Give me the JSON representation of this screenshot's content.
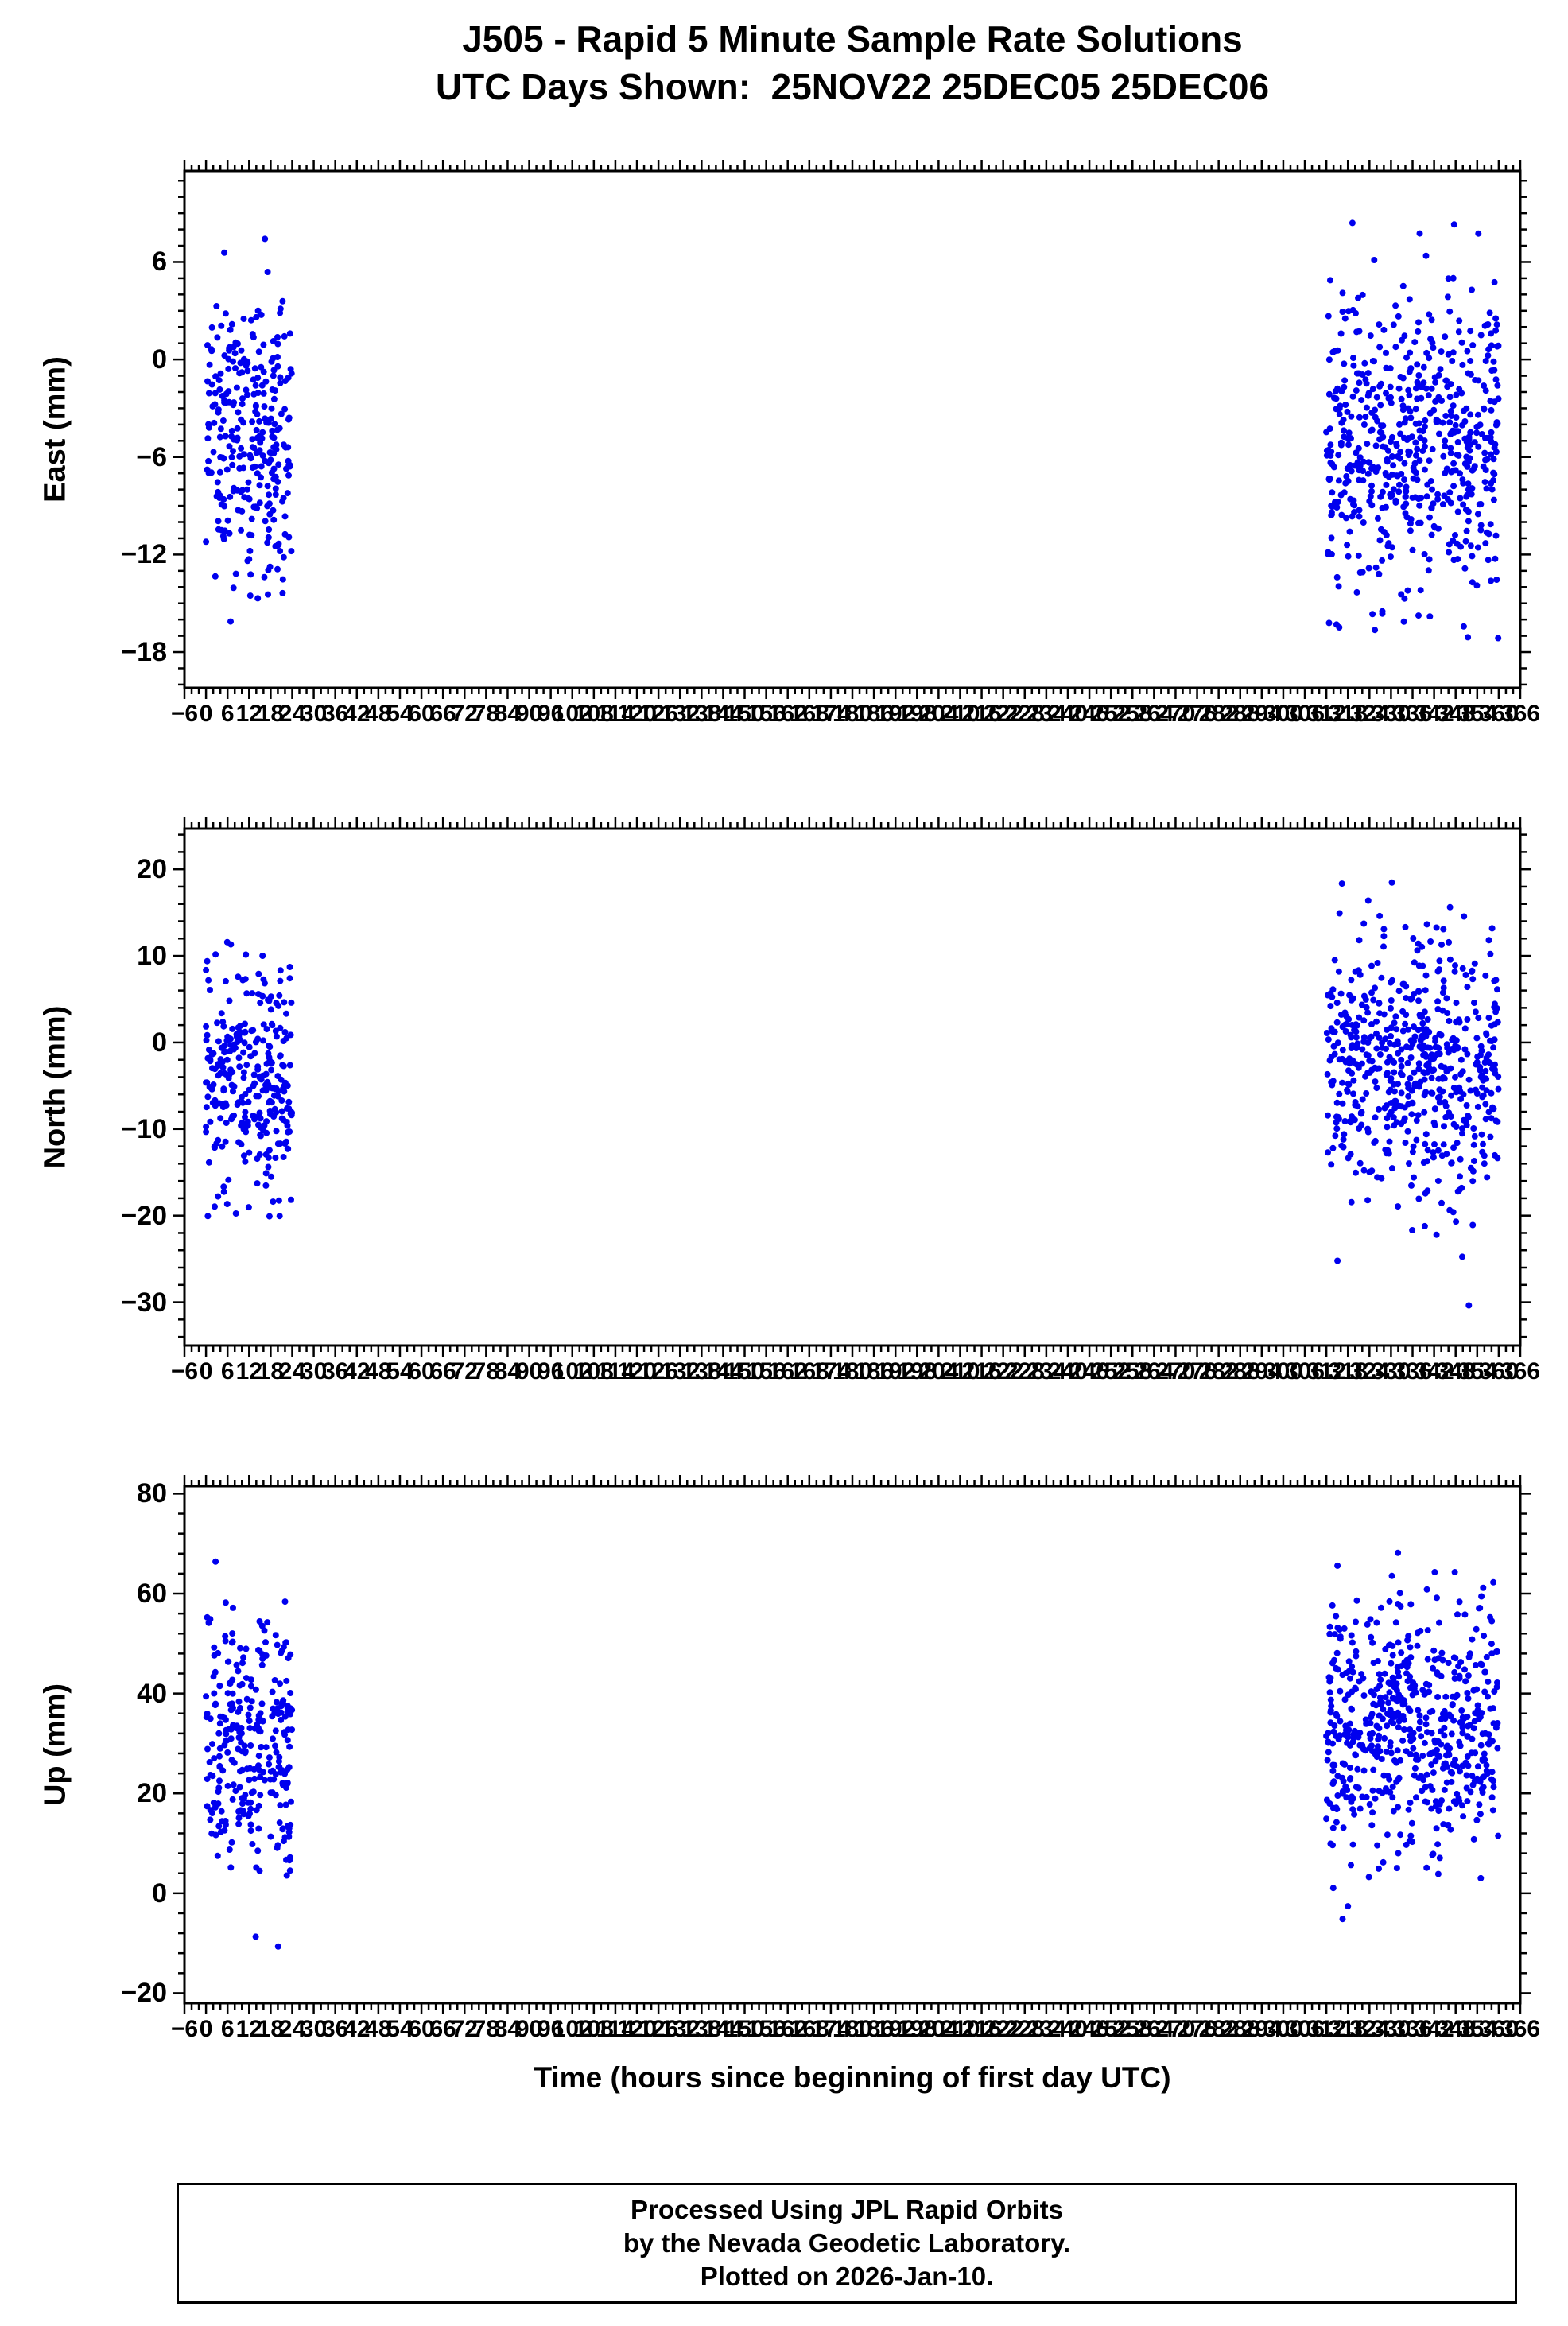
{
  "title": {
    "line1": "J505 - Rapid 5 Minute Sample Rate Solutions",
    "line2": "UTC Days Shown:  25NOV22 25DEC05 25DEC06"
  },
  "xlabel": "Time (hours since beginning of first day UTC)",
  "footer": {
    "lines": [
      "Processed Using JPL Rapid Orbits",
      "by the Nevada Geodetic Laboratory.",
      "Plotted on 2026-Jan-10."
    ]
  },
  "point_color": "#0000EE",
  "chart_data": [
    {
      "type": "scatter",
      "name": "east",
      "title": "J505 East component, 5-minute rapid solutions",
      "ylabel": "East (mm)",
      "ylim": [
        -20.2,
        11.6
      ],
      "yticks": [
        6,
        0,
        -6,
        -12,
        -18
      ],
      "ytick_step": 6,
      "y_minor": 1,
      "xlim": [
        -6,
        366
      ],
      "xtick_step": 6,
      "x_minor": 2,
      "grid": false,
      "legend": "none",
      "clusters": [
        {
          "label": "25NOV22",
          "x_min": 0,
          "x_max": 24,
          "n": 288,
          "mean": -4.5,
          "std": 4.3,
          "y_min": -17.2,
          "y_max": 7.6,
          "seed": 101
        },
        {
          "label": "25DEC05 25DEC06",
          "x_min": 312,
          "x_max": 360,
          "n": 576,
          "mean": -5.2,
          "std": 4.8,
          "y_min": -19.6,
          "y_max": 9.7,
          "seed": 102
        }
      ]
    },
    {
      "type": "scatter",
      "name": "north",
      "title": "J505 North component, 5-minute rapid solutions",
      "ylabel": "North (mm)",
      "ylim": [
        -35,
        24.7
      ],
      "yticks": [
        20,
        10,
        0,
        -10,
        -20,
        -30
      ],
      "ytick_step": 10,
      "y_minor": 2,
      "xlim": [
        -6,
        366
      ],
      "xtick_step": 6,
      "x_minor": 2,
      "grid": false,
      "legend": "none",
      "clusters": [
        {
          "label": "25NOV22",
          "x_min": 0,
          "x_max": 24,
          "n": 288,
          "mean": -4.0,
          "std": 6.5,
          "y_min": -28.8,
          "y_max": 14.5,
          "seed": 201
        },
        {
          "label": "25DEC05 25DEC06",
          "x_min": 312,
          "x_max": 360,
          "n": 576,
          "mean": -2.5,
          "std": 7.5,
          "y_min": -34.0,
          "y_max": 23.5,
          "seed": 202
        }
      ]
    },
    {
      "type": "scatter",
      "name": "up",
      "title": "J505 Up component, 5-minute rapid solutions",
      "ylabel": "Up (mm)",
      "ylim": [
        -22,
        81.5
      ],
      "yticks": [
        80,
        60,
        40,
        20,
        0,
        -20
      ],
      "ytick_step": 20,
      "y_minor": 4,
      "xlim": [
        -6,
        366
      ],
      "xtick_step": 6,
      "x_minor": 2,
      "grid": false,
      "legend": "none",
      "clusters": [
        {
          "label": "25NOV22",
          "x_min": 0,
          "x_max": 24,
          "n": 288,
          "mean": 30,
          "std": 13,
          "y_min": -19,
          "y_max": 68,
          "seed": 301
        },
        {
          "label": "25DEC05 25DEC06",
          "x_min": 312,
          "x_max": 360,
          "n": 576,
          "mean": 33,
          "std": 13,
          "y_min": -20,
          "y_max": 79.5,
          "seed": 302
        }
      ]
    }
  ]
}
